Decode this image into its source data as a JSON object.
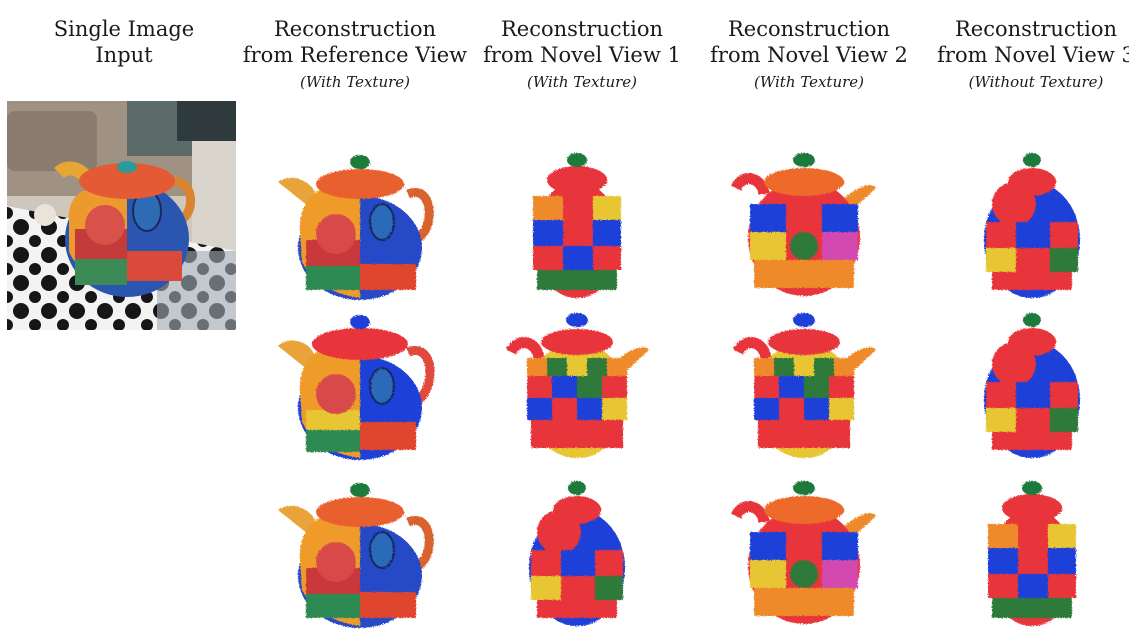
{
  "columns": [
    {
      "title_line1": "Single Image",
      "title_line2": "Input",
      "subtitle": ""
    },
    {
      "title_line1": "Reconstruction",
      "title_line2": "from Reference View",
      "subtitle": "(With Texture)"
    },
    {
      "title_line1": "Reconstruction",
      "title_line2": "from Novel View 1",
      "subtitle": "(With Texture)"
    },
    {
      "title_line1": "Reconstruction",
      "title_line2": "from Novel View 2",
      "subtitle": "(With Texture)"
    },
    {
      "title_line1": "Reconstruction",
      "title_line2": "from Novel View 3",
      "subtitle": "(Without Texture)"
    }
  ],
  "colors": {
    "blue": "#1f3fd8",
    "red": "#e8343a",
    "orange": "#f08a2a",
    "yellow": "#e8c530",
    "green": "#2e7a3a",
    "knob": "#1f7a3a"
  }
}
